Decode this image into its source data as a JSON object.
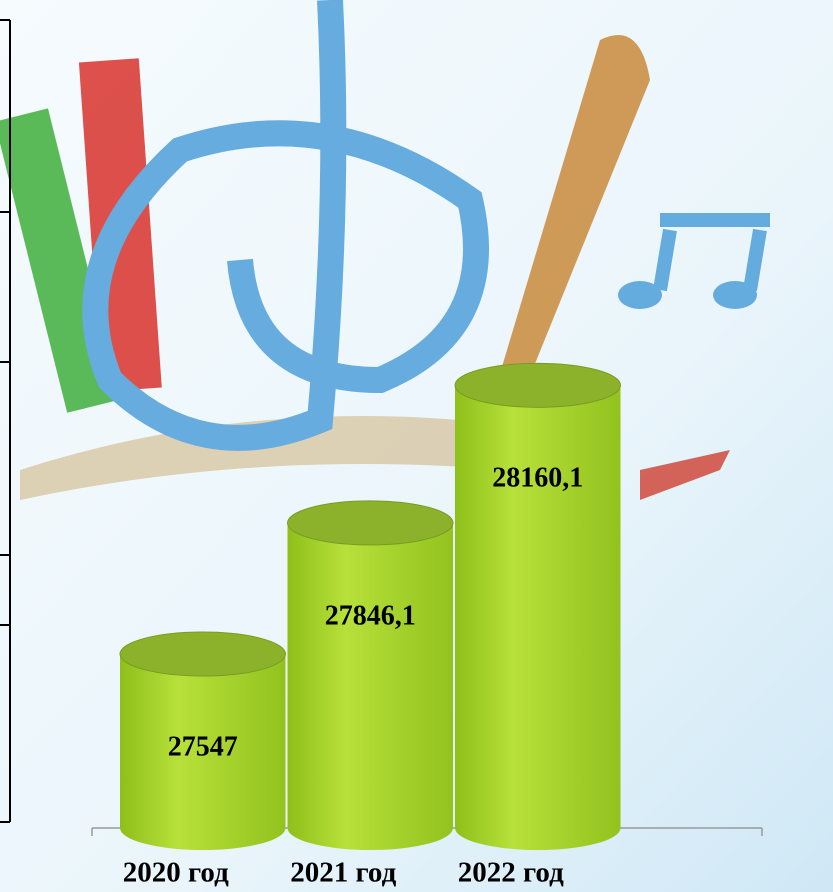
{
  "chart_data": {
    "type": "bar",
    "categories": [
      "2020 год",
      "2021 год",
      "2022 год",
      null
    ],
    "values": [
      27547,
      27846.1,
      28160.1,
      null
    ],
    "value_labels": [
      "27547",
      "27846,1",
      "28160,1",
      null
    ],
    "color": "#a6d42a",
    "ylim": [
      27150,
      28300
    ]
  }
}
